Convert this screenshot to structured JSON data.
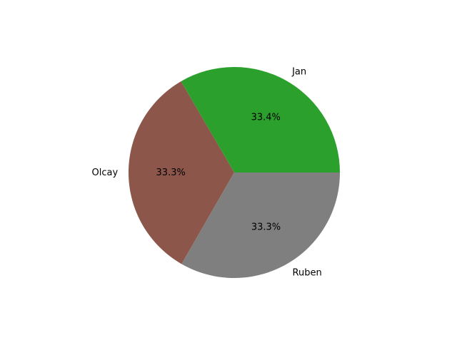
{
  "chart_data": {
    "type": "pie",
    "title": "",
    "start_angle_deg": 0,
    "direction": "counterclockwise",
    "slices": [
      {
        "label": "Jan",
        "value": 33.4,
        "pct_label": "33.4%",
        "color": "#2ca02c"
      },
      {
        "label": "Olcay",
        "value": 33.3,
        "pct_label": "33.3%",
        "color": "#8c564b"
      },
      {
        "label": "Ruben",
        "value": 33.3,
        "pct_label": "33.3%",
        "color": "#7f7f7f"
      }
    ]
  }
}
